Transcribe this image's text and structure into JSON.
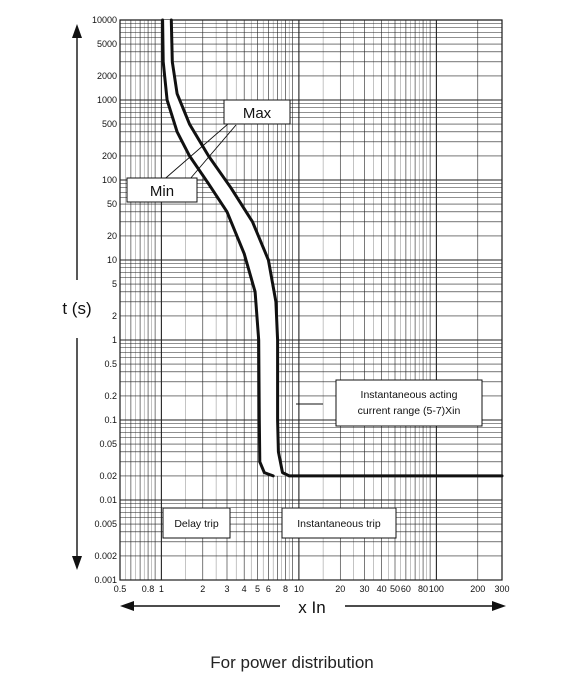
{
  "chart_data": {
    "type": "line",
    "title": "",
    "caption": "For power distribution",
    "xlabel": "x In",
    "ylabel": "t (s)",
    "x_scale": "log",
    "y_scale": "log",
    "xlim": [
      0.5,
      300
    ],
    "ylim": [
      0.001,
      10000
    ],
    "x_ticks": [
      "0.5",
      "0.8",
      "1",
      "2",
      "3",
      "4",
      "5",
      "6",
      "8",
      "10",
      "20",
      "30",
      "40",
      "50",
      "60",
      "80",
      "100",
      "200",
      "300"
    ],
    "x_tick_values": [
      0.5,
      0.8,
      1,
      2,
      3,
      4,
      5,
      6,
      8,
      10,
      20,
      30,
      40,
      50,
      60,
      80,
      100,
      200,
      300
    ],
    "y_ticks": [
      "10000",
      "5000",
      "2000",
      "1000",
      "500",
      "200",
      "100",
      "50",
      "20",
      "10",
      "5",
      "2",
      "1",
      "0.5",
      "0.2",
      "0.1",
      "0.05",
      "0.02",
      "0.01",
      "0.005",
      "0.002",
      "0.001"
    ],
    "y_tick_values": [
      10000,
      5000,
      2000,
      1000,
      500,
      200,
      100,
      50,
      20,
      10,
      5,
      2,
      1,
      0.5,
      0.2,
      0.1,
      0.05,
      0.02,
      0.01,
      0.005,
      0.002,
      0.001
    ],
    "grid": true,
    "series": [
      {
        "name": "Min",
        "points": [
          [
            1.02,
            10000
          ],
          [
            1.03,
            3000
          ],
          [
            1.1,
            1000
          ],
          [
            1.3,
            400
          ],
          [
            1.6,
            200
          ],
          [
            2.2,
            90
          ],
          [
            3.0,
            40
          ],
          [
            4.0,
            12
          ],
          [
            4.8,
            4
          ],
          [
            5.1,
            1
          ],
          [
            5.15,
            0.1
          ],
          [
            5.2,
            0.03
          ],
          [
            5.6,
            0.022
          ],
          [
            6.5,
            0.02
          ]
        ]
      },
      {
        "name": "Max",
        "points": [
          [
            1.18,
            10000
          ],
          [
            1.2,
            3000
          ],
          [
            1.3,
            1200
          ],
          [
            1.6,
            500
          ],
          [
            2.2,
            200
          ],
          [
            3.2,
            80
          ],
          [
            4.6,
            30
          ],
          [
            6.0,
            10
          ],
          [
            6.8,
            3
          ],
          [
            7.0,
            1
          ],
          [
            7.0,
            0.1
          ],
          [
            7.1,
            0.04
          ],
          [
            7.6,
            0.022
          ],
          [
            8.5,
            0.02
          ],
          [
            300,
            0.02
          ]
        ]
      }
    ],
    "annotations": [
      {
        "text": "Max"
      },
      {
        "text": "Min"
      },
      {
        "text": "Instantaneous acting current range (5-7)Xin"
      },
      {
        "text": "Delay trip"
      },
      {
        "text": "Instantaneous trip"
      }
    ]
  },
  "labels": {
    "max": "Max",
    "min": "Min",
    "inst_range_line1": "Instantaneous acting",
    "inst_range_line2": "current range (5-7)Xin",
    "delay_trip": "Delay trip",
    "instantaneous_trip": "Instantaneous trip"
  },
  "caption": "For power distribution"
}
